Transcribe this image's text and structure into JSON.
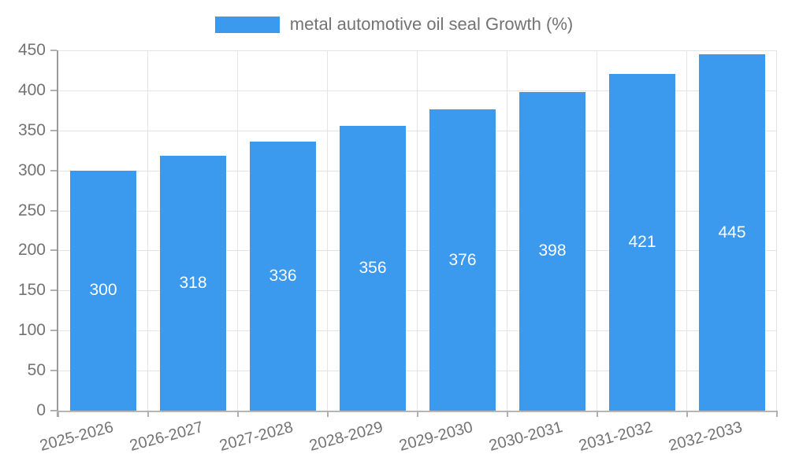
{
  "colors": {
    "bar": "#3b99ee",
    "grid": "#e4e4e4",
    "axis_y": "#9b9b9b",
    "axis_x": "#b6b6b6",
    "tick": "#b0b0b0",
    "text": "#737373",
    "bar_label": "#ffffff",
    "background": "#ffffff"
  },
  "chart_data": {
    "type": "bar",
    "title": "",
    "legend_label": "metal automotive oil seal Growth (%)",
    "legend_position": "top-center",
    "categories": [
      "2025-2026",
      "2026-2027",
      "2027-2028",
      "2028-2029",
      "2029-2030",
      "2030-2031",
      "2031-2032",
      "2032-2033"
    ],
    "values": [
      300,
      318,
      336,
      356,
      376,
      398,
      421,
      445
    ],
    "xlabel": "",
    "ylabel": "",
    "ylim": [
      0,
      450
    ],
    "yticks": [
      0,
      50,
      100,
      150,
      200,
      250,
      300,
      350,
      400,
      450
    ],
    "grid": true,
    "bar_value_labels": true,
    "x_label_rotation_deg": -15
  }
}
